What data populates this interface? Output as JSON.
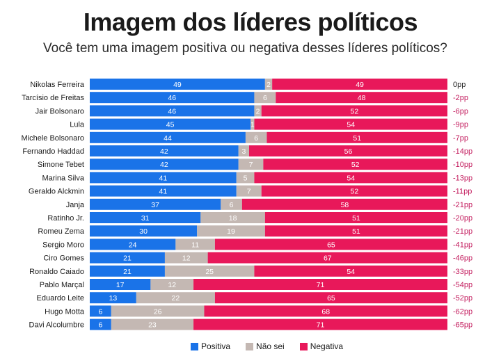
{
  "title": "Imagem dos líderes políticos",
  "subtitle": "Você tem uma imagem positiva ou negativa desses líderes políticos?",
  "colors": {
    "positiva": "#1a73e8",
    "nao_sei": "#c4b8b3",
    "negativa": "#e8185a",
    "diff_text": "#c2185b"
  },
  "legend": {
    "positiva": "Positiva",
    "nao_sei": "Não sei",
    "negativa": "Negativa"
  },
  "chart_data": {
    "type": "bar",
    "orientation": "horizontal-stacked-100",
    "categories": [
      "Nikolas Ferreira",
      "Tarcísio de Freitas",
      "Jair Bolsonaro",
      "Lula",
      "Michele Bolsonaro",
      "Fernando Haddad",
      "Simone Tebet",
      "Marina Silva",
      "Geraldo Alckmin",
      "Janja",
      "Ratinho Jr.",
      "Romeu Zema",
      "Sergio Moro",
      "Ciro Gomes",
      "Ronaldo Caiado",
      "Pablo Marçal",
      "Eduardo Leite",
      "Hugo Motta",
      "Davi Alcolumbre"
    ],
    "series": [
      {
        "name": "Positiva",
        "values": [
          49,
          46,
          46,
          45,
          44,
          42,
          42,
          41,
          41,
          37,
          31,
          30,
          24,
          21,
          21,
          17,
          13,
          6,
          6
        ]
      },
      {
        "name": "Não sei",
        "values": [
          2,
          6,
          2,
          1,
          6,
          3,
          7,
          5,
          7,
          6,
          18,
          19,
          11,
          12,
          25,
          12,
          22,
          26,
          23
        ]
      },
      {
        "name": "Negativa",
        "values": [
          49,
          48,
          52,
          54,
          51,
          56,
          52,
          54,
          52,
          58,
          51,
          51,
          65,
          67,
          54,
          71,
          65,
          68,
          71
        ]
      }
    ],
    "diff_labels": [
      "0pp",
      "-2pp",
      "-6pp",
      "-9pp",
      "-7pp",
      "-14pp",
      "-10pp",
      "-13pp",
      "-11pp",
      "-21pp",
      "-20pp",
      "-21pp",
      "-41pp",
      "-46pp",
      "-33pp",
      "-54pp",
      "-52pp",
      "-62pp",
      "-65pp"
    ],
    "legend_position": "bottom"
  }
}
